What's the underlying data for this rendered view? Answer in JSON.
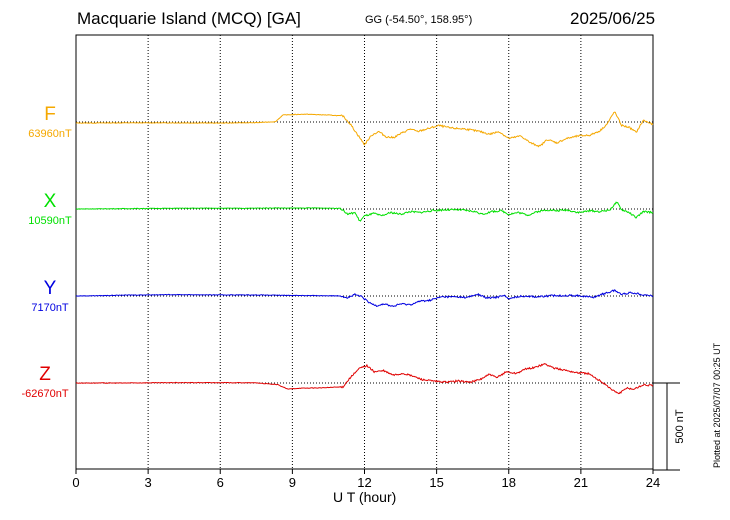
{
  "header": {
    "title": "Macquarie Island (MCQ)  [GA]",
    "coords": "GG (-54.50°, 158.95°)",
    "date": "2025/06/25"
  },
  "footnote": "Plotted at 2025/07/07 00:25 UT",
  "scale_label": "500 nT",
  "chart_data": {
    "type": "line",
    "title": "Macquarie Island (MCQ)  [GA]",
    "xlabel": "U T (hour)",
    "x_ticks": [
      "0",
      "3",
      "6",
      "9",
      "12",
      "15",
      "18",
      "21",
      "24"
    ],
    "xlim": [
      0,
      24
    ],
    "grid": true,
    "scale_bar_nT": 500,
    "series": [
      {
        "name": "F",
        "baseline": "63960nT",
        "color": "#f5a800",
        "points": [
          [
            0,
            -6
          ],
          [
            2,
            -5
          ],
          [
            4,
            -5
          ],
          [
            6,
            -6
          ],
          [
            7.5,
            -4
          ],
          [
            8.3,
            2
          ],
          [
            8.6,
            40
          ],
          [
            9.5,
            45
          ],
          [
            10.5,
            40
          ],
          [
            11.1,
            35
          ],
          [
            11.4,
            -10
          ],
          [
            11.8,
            -90
          ],
          [
            12.0,
            -130
          ],
          [
            12.3,
            -75
          ],
          [
            12.6,
            -55
          ],
          [
            12.9,
            -85
          ],
          [
            13.2,
            -90
          ],
          [
            13.6,
            -60
          ],
          [
            13.9,
            -40
          ],
          [
            14.2,
            -55
          ],
          [
            14.6,
            -40
          ],
          [
            15.1,
            -20
          ],
          [
            15.6,
            -35
          ],
          [
            16.2,
            -40
          ],
          [
            16.8,
            -55
          ],
          [
            17.2,
            -70
          ],
          [
            17.6,
            -55
          ],
          [
            18.0,
            -95
          ],
          [
            18.5,
            -80
          ],
          [
            18.9,
            -120
          ],
          [
            19.3,
            -140
          ],
          [
            19.6,
            -100
          ],
          [
            20.0,
            -120
          ],
          [
            20.4,
            -95
          ],
          [
            20.9,
            -80
          ],
          [
            21.4,
            -75
          ],
          [
            21.8,
            -50
          ],
          [
            22.1,
            -10
          ],
          [
            22.4,
            60
          ],
          [
            22.7,
            -20
          ],
          [
            23.0,
            -30
          ],
          [
            23.3,
            -60
          ],
          [
            23.6,
            10
          ],
          [
            24,
            -15
          ]
        ]
      },
      {
        "name": "X",
        "baseline": "10590nT",
        "color": "#00e000",
        "points": [
          [
            0,
            0
          ],
          [
            2,
            2
          ],
          [
            4,
            4
          ],
          [
            5.5,
            5
          ],
          [
            7,
            4
          ],
          [
            8.3,
            6
          ],
          [
            9,
            5
          ],
          [
            10,
            6
          ],
          [
            11,
            4
          ],
          [
            11.3,
            -30
          ],
          [
            11.6,
            -20
          ],
          [
            11.8,
            -70
          ],
          [
            12.0,
            -40
          ],
          [
            12.4,
            -25
          ],
          [
            12.7,
            -40
          ],
          [
            13.1,
            -20
          ],
          [
            13.5,
            -30
          ],
          [
            13.9,
            -15
          ],
          [
            14.3,
            -20
          ],
          [
            14.8,
            -10
          ],
          [
            15.3,
            -5
          ],
          [
            16.0,
            -5
          ],
          [
            16.6,
            -15
          ],
          [
            16.9,
            -30
          ],
          [
            17.3,
            -15
          ],
          [
            17.7,
            -10
          ],
          [
            18.0,
            -30
          ],
          [
            18.4,
            -20
          ],
          [
            18.8,
            -35
          ],
          [
            19.2,
            -15
          ],
          [
            19.6,
            -5
          ],
          [
            20.0,
            -10
          ],
          [
            20.4,
            -5
          ],
          [
            20.9,
            -20
          ],
          [
            21.4,
            -10
          ],
          [
            21.8,
            -15
          ],
          [
            22.2,
            -5
          ],
          [
            22.5,
            40
          ],
          [
            22.7,
            -5
          ],
          [
            23.0,
            -20
          ],
          [
            23.3,
            -50
          ],
          [
            23.6,
            -15
          ],
          [
            24,
            -20
          ]
        ]
      },
      {
        "name": "Y",
        "baseline": "7170nT",
        "color": "#0000e0",
        "points": [
          [
            0,
            0
          ],
          [
            1,
            2
          ],
          [
            2,
            5
          ],
          [
            4,
            8
          ],
          [
            6,
            6
          ],
          [
            7.5,
            6
          ],
          [
            8.5,
            4
          ],
          [
            9.3,
            3
          ],
          [
            10.2,
            2
          ],
          [
            11,
            1
          ],
          [
            11.3,
            -10
          ],
          [
            11.6,
            8
          ],
          [
            11.9,
            -5
          ],
          [
            12.2,
            -40
          ],
          [
            12.5,
            -55
          ],
          [
            12.8,
            -45
          ],
          [
            13.2,
            -60
          ],
          [
            13.5,
            -45
          ],
          [
            13.9,
            -50
          ],
          [
            14.3,
            -30
          ],
          [
            14.7,
            -25
          ],
          [
            15.2,
            -5
          ],
          [
            15.8,
            -5
          ],
          [
            16.3,
            -8
          ],
          [
            16.7,
            10
          ],
          [
            17.1,
            -12
          ],
          [
            17.5,
            -8
          ],
          [
            17.8,
            6
          ],
          [
            18.0,
            -18
          ],
          [
            18.3,
            -5
          ],
          [
            18.7,
            0
          ],
          [
            19.2,
            -5
          ],
          [
            19.8,
            2
          ],
          [
            20.4,
            3
          ],
          [
            21.0,
            1
          ],
          [
            21.5,
            -8
          ],
          [
            22.0,
            15
          ],
          [
            22.4,
            32
          ],
          [
            22.7,
            10
          ],
          [
            23.1,
            20
          ],
          [
            23.5,
            10
          ],
          [
            24,
            0
          ]
        ]
      },
      {
        "name": "Z",
        "baseline": "-62670nT",
        "color": "#e00000",
        "points": [
          [
            0,
            0
          ],
          [
            2,
            0
          ],
          [
            4,
            2
          ],
          [
            6,
            2
          ],
          [
            7.5,
            1
          ],
          [
            8.4,
            -10
          ],
          [
            8.8,
            -35
          ],
          [
            9.3,
            -30
          ],
          [
            10.2,
            -28
          ],
          [
            11.1,
            -22
          ],
          [
            11.4,
            30
          ],
          [
            11.8,
            85
          ],
          [
            12.1,
            100
          ],
          [
            12.4,
            65
          ],
          [
            12.8,
            70
          ],
          [
            13.2,
            45
          ],
          [
            13.6,
            55
          ],
          [
            14.0,
            40
          ],
          [
            14.4,
            20
          ],
          [
            14.9,
            10
          ],
          [
            15.4,
            5
          ],
          [
            15.9,
            12
          ],
          [
            16.4,
            5
          ],
          [
            16.8,
            20
          ],
          [
            17.2,
            50
          ],
          [
            17.5,
            30
          ],
          [
            17.9,
            65
          ],
          [
            18.3,
            55
          ],
          [
            18.7,
            80
          ],
          [
            19.1,
            90
          ],
          [
            19.5,
            110
          ],
          [
            19.9,
            85
          ],
          [
            20.3,
            75
          ],
          [
            20.8,
            60
          ],
          [
            21.3,
            55
          ],
          [
            21.7,
            20
          ],
          [
            22.0,
            -5
          ],
          [
            22.3,
            -40
          ],
          [
            22.6,
            -60
          ],
          [
            22.9,
            -30
          ],
          [
            23.2,
            -35
          ],
          [
            23.6,
            -10
          ],
          [
            24,
            -15
          ]
        ]
      }
    ]
  }
}
